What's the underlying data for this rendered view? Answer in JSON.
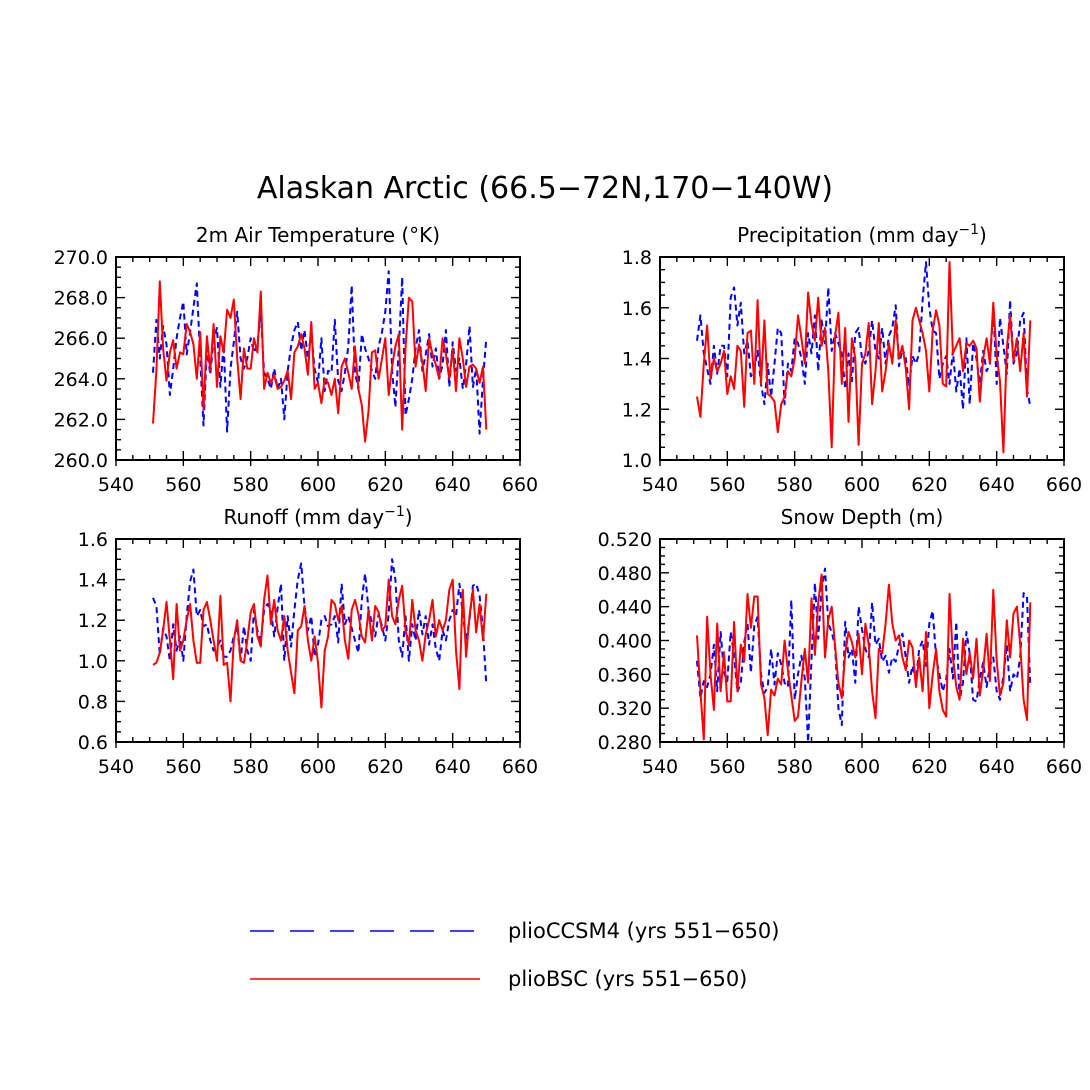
{
  "title": "Alaskan Arctic (66.5−72N,170−140W)",
  "chart_data": [
    {
      "type": "line",
      "title": "2m Air Temperature (°K)",
      "title_parts": [
        "2m Air Temperature (°K)"
      ],
      "xlim": [
        540,
        660
      ],
      "ylim": [
        260,
        270
      ],
      "xticks": [
        540,
        560,
        580,
        600,
        620,
        640,
        660
      ],
      "xticklabels": [
        "540",
        "560",
        "580",
        "600",
        "620",
        "640",
        "660"
      ],
      "yticks": [
        260,
        262,
        264,
        266,
        268,
        270
      ],
      "yticklabels": [
        "260.0",
        "262.0",
        "264.0",
        "266.0",
        "268.0",
        "270.0"
      ],
      "x_start": 551,
      "series": [
        {
          "name": "plioCCSM4 (yrs 551−650)",
          "color": "#0000ff",
          "dash": "dashed",
          "values": [
            264.3,
            266.9,
            265.0,
            266.6,
            265.7,
            263.2,
            264.5,
            266.0,
            267.0,
            267.8,
            265.2,
            266.3,
            267.5,
            268.7,
            265.0,
            261.7,
            265.5,
            264.2,
            266.0,
            266.5,
            263.6,
            265.7,
            261.4,
            264.5,
            265.8,
            267.3,
            265.0,
            264.5,
            265.0,
            266.0,
            265.3,
            265.7,
            267.3,
            264.3,
            264.0,
            263.5,
            264.5,
            263.5,
            264.0,
            262.0,
            264.4,
            265.6,
            266.4,
            266.8,
            265.4,
            266.4,
            265.0,
            266.3,
            264.5,
            263.8,
            266.0,
            263.4,
            264.4,
            264.3,
            266.9,
            263.9,
            263.4,
            264.3,
            265.6,
            268.6,
            264.3,
            263.5,
            266.2,
            265.5,
            265.0,
            264.4,
            264.0,
            265.6,
            266.3,
            267.3,
            269.3,
            264.4,
            262.6,
            265.5,
            269.0,
            262.2,
            263.0,
            264.0,
            265.5,
            266.4,
            264.4,
            265.2,
            266.2,
            264.6,
            265.5,
            264.0,
            264.7,
            266.4,
            263.6,
            265.8,
            264.4,
            265.0,
            263.5,
            264.7,
            266.6,
            263.6,
            264.5,
            261.3,
            264.0,
            266.0
          ]
        },
        {
          "name": "plioBSC (yrs 551−650)",
          "color": "#ff0000",
          "dash": "solid",
          "values": [
            261.8,
            264.4,
            268.8,
            265.5,
            263.9,
            265.3,
            265.9,
            264.5,
            265.3,
            265.2,
            266.7,
            266.3,
            265.7,
            264.0,
            266.3,
            262.5,
            266.1,
            264.4,
            266.7,
            263.6,
            266.1,
            265.3,
            267.4,
            267.0,
            267.9,
            265.0,
            263.0,
            265.5,
            264.5,
            264.5,
            266.0,
            265.3,
            268.3,
            263.5,
            264.3,
            263.8,
            264.2,
            263.5,
            263.6,
            263.9,
            264.4,
            263.0,
            265.3,
            265.6,
            266.2,
            265.5,
            264.2,
            266.8,
            263.5,
            263.8,
            262.8,
            264.0,
            263.8,
            263.2,
            264.0,
            262.3,
            264.6,
            265.0,
            264.3,
            263.5,
            265.6,
            263.5,
            262.7,
            260.9,
            262.4,
            265.3,
            265.4,
            264.0,
            265.0,
            266.0,
            263.2,
            264.6,
            265.6,
            266.2,
            261.5,
            265.5,
            268.0,
            267.8,
            264.6,
            265.7,
            264.8,
            263.4,
            266.0,
            265.2,
            264.7,
            264.0,
            266.0,
            265.2,
            264.0,
            265.5,
            263.4,
            266.0,
            265.0,
            263.6,
            264.6,
            264.7,
            264.5,
            263.8,
            264.6,
            261.5
          ]
        }
      ]
    },
    {
      "type": "line",
      "title": "Precipitation (mm day⁻¹)",
      "title_parts": [
        "Precipitation (mm day",
        "−1",
        ")"
      ],
      "xlim": [
        540,
        660
      ],
      "ylim": [
        1.0,
        1.8
      ],
      "xticks": [
        540,
        560,
        580,
        600,
        620,
        640,
        660
      ],
      "xticklabels": [
        "540",
        "560",
        "580",
        "600",
        "620",
        "640",
        "660"
      ],
      "yticks": [
        1.0,
        1.2,
        1.4,
        1.6,
        1.8
      ],
      "yticklabels": [
        "1.0",
        "1.2",
        "1.4",
        "1.6",
        "1.8"
      ],
      "x_start": 551,
      "series": [
        {
          "name": "plioCCSM4 (yrs 551−650)",
          "color": "#0000ff",
          "dash": "dashed",
          "values": [
            1.47,
            1.57,
            1.42,
            1.36,
            1.3,
            1.45,
            1.34,
            1.45,
            1.45,
            1.33,
            1.64,
            1.68,
            1.53,
            1.62,
            1.42,
            1.47,
            1.33,
            1.36,
            1.43,
            1.3,
            1.22,
            1.38,
            1.25,
            1.38,
            1.52,
            1.5,
            1.22,
            1.38,
            1.35,
            1.48,
            1.46,
            1.4,
            1.3,
            1.5,
            1.42,
            1.57,
            1.35,
            1.55,
            1.46,
            1.68,
            1.43,
            1.5,
            1.46,
            1.42,
            1.28,
            1.42,
            1.31,
            1.5,
            1.52,
            1.4,
            1.38,
            1.43,
            1.55,
            1.43,
            1.4,
            1.52,
            1.38,
            1.49,
            1.52,
            1.61,
            1.37,
            1.44,
            1.4,
            1.29,
            1.41,
            1.38,
            1.42,
            1.63,
            1.78,
            1.6,
            1.51,
            1.5,
            1.32,
            1.38,
            1.41,
            1.3,
            1.43,
            1.27,
            1.36,
            1.2,
            1.48,
            1.22,
            1.46,
            1.4,
            1.3,
            1.43,
            1.35,
            1.38,
            1.6,
            1.3,
            1.56,
            1.45,
            1.34,
            1.63,
            1.38,
            1.42,
            1.55,
            1.58,
            1.28,
            1.21
          ]
        },
        {
          "name": "plioBSC (yrs 551−650)",
          "color": "#ff0000",
          "dash": "solid",
          "values": [
            1.25,
            1.17,
            1.38,
            1.53,
            1.32,
            1.4,
            1.35,
            1.38,
            1.43,
            1.26,
            1.33,
            1.28,
            1.45,
            1.43,
            1.21,
            1.5,
            1.51,
            1.3,
            1.63,
            1.3,
            1.55,
            1.26,
            1.25,
            1.23,
            1.11,
            1.22,
            1.25,
            1.35,
            1.33,
            1.4,
            1.57,
            1.48,
            1.38,
            1.66,
            1.54,
            1.47,
            1.64,
            1.45,
            1.52,
            1.35,
            1.05,
            1.49,
            1.58,
            1.3,
            1.52,
            1.15,
            1.48,
            1.4,
            1.06,
            1.38,
            1.42,
            1.54,
            1.22,
            1.35,
            1.54,
            1.27,
            1.35,
            1.46,
            1.38,
            1.55,
            1.4,
            1.45,
            1.36,
            1.2,
            1.55,
            1.6,
            1.55,
            1.5,
            1.43,
            1.27,
            1.51,
            1.59,
            1.53,
            1.3,
            1.29,
            1.78,
            1.42,
            1.45,
            1.48,
            1.35,
            1.46,
            1.45,
            1.47,
            1.44,
            1.23,
            1.4,
            1.48,
            1.38,
            1.62,
            1.41,
            1.31,
            1.03,
            1.44,
            1.57,
            1.39,
            1.48,
            1.35,
            1.5,
            1.25,
            1.55
          ]
        }
      ]
    },
    {
      "type": "line",
      "title": "Runoff (mm day⁻¹)",
      "title_parts": [
        "Runoff (mm day",
        "−1",
        ")"
      ],
      "xlim": [
        540,
        660
      ],
      "ylim": [
        0.6,
        1.6
      ],
      "xticks": [
        540,
        560,
        580,
        600,
        620,
        640,
        660
      ],
      "xticklabels": [
        "540",
        "560",
        "580",
        "600",
        "620",
        "640",
        "660"
      ],
      "yticks": [
        0.6,
        0.8,
        1.0,
        1.2,
        1.4,
        1.6
      ],
      "yticklabels": [
        "0.6",
        "0.8",
        "1.0",
        "1.2",
        "1.4",
        "1.6"
      ],
      "x_start": 551,
      "series": [
        {
          "name": "plioCCSM4 (yrs 551−650)",
          "color": "#0000ff",
          "dash": "dashed",
          "values": [
            1.31,
            1.27,
            1.03,
            1.16,
            1.12,
            1.0,
            1.18,
            1.05,
            1.12,
            1.0,
            1.22,
            1.39,
            1.45,
            1.22,
            1.25,
            1.17,
            1.18,
            1.1,
            1.05,
            1.07,
            1.1,
            1.02,
            1.02,
            1.05,
            1.12,
            1.17,
            1.0,
            1.17,
            1.05,
            1.0,
            1.25,
            1.15,
            1.1,
            1.25,
            1.28,
            1.25,
            1.12,
            1.26,
            1.38,
            1.0,
            1.22,
            1.07,
            1.25,
            1.4,
            1.48,
            1.27,
            1.15,
            1.22,
            1.02,
            1.08,
            1.2,
            1.22,
            1.17,
            1.18,
            1.22,
            1.09,
            1.38,
            1.18,
            1.22,
            1.16,
            1.1,
            1.04,
            1.3,
            1.43,
            1.25,
            1.19,
            1.12,
            1.23,
            1.17,
            1.1,
            1.23,
            1.5,
            1.4,
            1.1,
            1.02,
            1.22,
            1.0,
            1.18,
            1.1,
            1.25,
            1.13,
            1.22,
            1.08,
            1.18,
            1.06,
            1.0,
            1.15,
            1.1,
            1.2,
            1.25,
            1.22,
            1.38,
            1.23,
            1.1,
            1.2,
            1.37,
            1.38,
            1.32,
            1.15,
            0.88
          ]
        },
        {
          "name": "plioBSC (yrs 551−650)",
          "color": "#ff0000",
          "dash": "solid",
          "values": [
            0.98,
            0.99,
            1.04,
            1.15,
            1.29,
            1.1,
            0.91,
            1.28,
            1.05,
            1.1,
            1.2,
            1.28,
            1.1,
            0.99,
            0.99,
            1.25,
            1.29,
            1.2,
            1.1,
            1.0,
            1.32,
            0.98,
            0.99,
            0.8,
            1.1,
            1.2,
            1.0,
            0.99,
            1.1,
            1.24,
            1.28,
            1.12,
            1.07,
            1.3,
            1.42,
            1.18,
            1.3,
            1.15,
            1.1,
            1.22,
            1.05,
            0.94,
            0.84,
            1.15,
            1.17,
            1.27,
            1.1,
            1.0,
            1.12,
            0.99,
            0.77,
            1.05,
            1.12,
            1.3,
            1.28,
            1.2,
            1.27,
            1.1,
            1.01,
            1.25,
            1.3,
            1.23,
            1.12,
            1.09,
            1.25,
            1.1,
            1.27,
            1.24,
            1.15,
            1.17,
            1.4,
            1.22,
            1.18,
            1.3,
            1.37,
            1.15,
            1.08,
            1.3,
            1.15,
            1.1,
            1.0,
            1.13,
            1.2,
            1.3,
            1.12,
            1.2,
            1.15,
            1.2,
            1.35,
            1.4,
            1.05,
            0.86,
            1.35,
            1.02,
            1.22,
            1.35,
            1.14,
            1.28,
            1.1,
            1.33
          ]
        }
      ]
    },
    {
      "type": "line",
      "title": "Snow Depth (m)",
      "title_parts": [
        "Snow Depth (m)"
      ],
      "xlim": [
        540,
        660
      ],
      "ylim": [
        0.28,
        0.52
      ],
      "xticks": [
        540,
        560,
        580,
        600,
        620,
        640,
        660
      ],
      "xticklabels": [
        "540",
        "560",
        "580",
        "600",
        "620",
        "640",
        "660"
      ],
      "yticks": [
        0.28,
        0.32,
        0.36,
        0.4,
        0.44,
        0.48,
        0.52
      ],
      "yticklabels": [
        "0.280",
        "0.320",
        "0.360",
        "0.400",
        "0.440",
        "0.480",
        "0.520"
      ],
      "x_start": 551,
      "series": [
        {
          "name": "plioCCSM4 (yrs 551−650)",
          "color": "#0000ff",
          "dash": "dashed",
          "values": [
            0.376,
            0.332,
            0.352,
            0.345,
            0.36,
            0.395,
            0.34,
            0.41,
            0.362,
            0.352,
            0.41,
            0.382,
            0.339,
            0.35,
            0.398,
            0.42,
            0.362,
            0.418,
            0.428,
            0.36,
            0.338,
            0.345,
            0.39,
            0.348,
            0.385,
            0.372,
            0.35,
            0.345,
            0.448,
            0.33,
            0.36,
            0.382,
            0.355,
            0.28,
            0.378,
            0.468,
            0.402,
            0.46,
            0.485,
            0.42,
            0.41,
            0.393,
            0.32,
            0.3,
            0.422,
            0.38,
            0.39,
            0.35,
            0.44,
            0.413,
            0.39,
            0.38,
            0.445,
            0.395,
            0.402,
            0.375,
            0.382,
            0.362,
            0.38,
            0.375,
            0.395,
            0.408,
            0.38,
            0.35,
            0.37,
            0.352,
            0.39,
            0.4,
            0.37,
            0.42,
            0.435,
            0.38,
            0.36,
            0.34,
            0.354,
            0.39,
            0.355,
            0.422,
            0.33,
            0.35,
            0.41,
            0.385,
            0.33,
            0.328,
            0.355,
            0.374,
            0.345,
            0.37,
            0.38,
            0.34,
            0.33,
            0.358,
            0.395,
            0.34,
            0.36,
            0.355,
            0.38,
            0.456,
            0.452,
            0.345
          ]
        },
        {
          "name": "plioBSC (yrs 551−650)",
          "color": "#ff0000",
          "dash": "solid",
          "values": [
            0.406,
            0.34,
            0.283,
            0.428,
            0.36,
            0.318,
            0.42,
            0.34,
            0.386,
            0.328,
            0.328,
            0.422,
            0.34,
            0.395,
            0.375,
            0.455,
            0.415,
            0.452,
            0.452,
            0.348,
            0.332,
            0.288,
            0.342,
            0.335,
            0.355,
            0.348,
            0.4,
            0.365,
            0.335,
            0.305,
            0.31,
            0.352,
            0.39,
            0.35,
            0.45,
            0.383,
            0.445,
            0.478,
            0.38,
            0.425,
            0.44,
            0.393,
            0.35,
            0.332,
            0.385,
            0.41,
            0.398,
            0.38,
            0.408,
            0.36,
            0.42,
            0.395,
            0.34,
            0.308,
            0.39,
            0.385,
            0.42,
            0.466,
            0.42,
            0.4,
            0.406,
            0.38,
            0.365,
            0.4,
            0.392,
            0.345,
            0.38,
            0.34,
            0.41,
            0.32,
            0.36,
            0.39,
            0.34,
            0.318,
            0.31,
            0.455,
            0.38,
            0.345,
            0.33,
            0.402,
            0.36,
            0.385,
            0.355,
            0.402,
            0.335,
            0.365,
            0.408,
            0.352,
            0.46,
            0.376,
            0.335,
            0.35,
            0.424,
            0.38,
            0.432,
            0.44,
            0.395,
            0.33,
            0.306,
            0.445
          ]
        }
      ]
    }
  ],
  "legend": [
    {
      "label": "plioCCSM4 (yrs 551−650)",
      "color": "#0000ff",
      "dash": "dashed"
    },
    {
      "label": "plioBSC (yrs 551−650)",
      "color": "#ff0000",
      "dash": "solid"
    }
  ]
}
